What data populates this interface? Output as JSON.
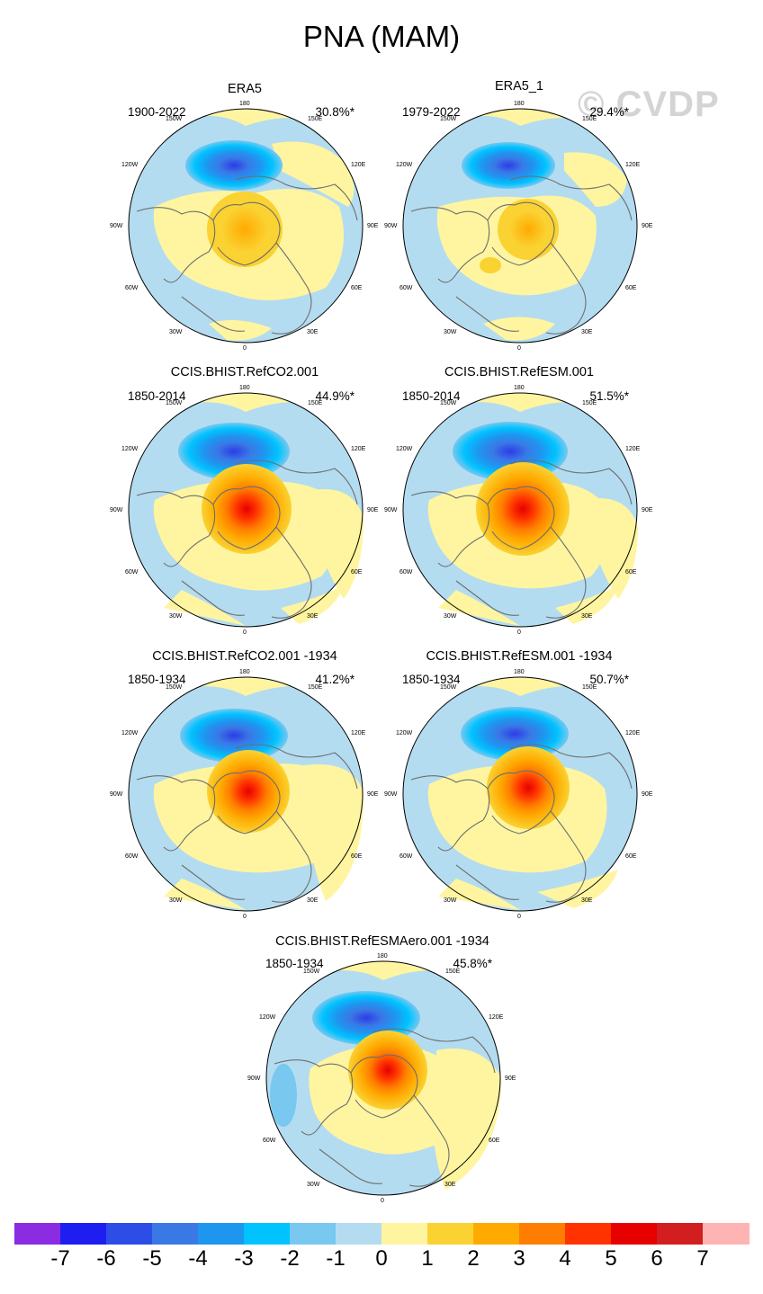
{
  "figure_title": "PNA (MAM)",
  "watermark": "© CVDP",
  "panels": [
    {
      "title": "ERA5",
      "years": "1900-2022",
      "pct": "30.8%*"
    },
    {
      "title": "ERA5_1",
      "years": "1979-2022",
      "pct": "29.4%*"
    },
    {
      "title": "CCIS.BHIST.RefCO2.001",
      "years": "1850-2014",
      "pct": "44.9%*"
    },
    {
      "title": "CCIS.BHIST.RefESM.001",
      "years": "1850-2014",
      "pct": "51.5%*"
    },
    {
      "title": "CCIS.BHIST.RefCO2.001 -1934",
      "years": "1850-1934",
      "pct": "41.2%*"
    },
    {
      "title": "CCIS.BHIST.RefESM.001 -1934",
      "years": "1850-1934",
      "pct": "50.7%*"
    },
    {
      "title": "CCIS.BHIST.RefESMAero.001 -1934",
      "years": "1850-1934",
      "pct": "45.8%*"
    }
  ],
  "lon_labels": {
    "l180": "180",
    "l150w": "150W",
    "l150e": "150E",
    "l120w": "120W",
    "l120e": "120E",
    "l90w": "90W",
    "l90e": "90E",
    "l60w": "60W",
    "l60e": "60E",
    "l30w": "30W",
    "l30e": "30E",
    "l0": "0"
  },
  "colorbar": {
    "colors": [
      "#8b2be2",
      "#1e1ef0",
      "#2d4ee6",
      "#3a78e6",
      "#1e96f0",
      "#00c3ff",
      "#78c8f0",
      "#b4dcf0",
      "#fff5a0",
      "#fad232",
      "#ffaa00",
      "#ff7d00",
      "#ff3200",
      "#e60000",
      "#d21e1e",
      "#ffb4b4"
    ],
    "tick_labels": [
      "-7",
      "-6",
      "-5",
      "-4",
      "-3",
      "-2",
      "-1",
      "0",
      "1",
      "2",
      "3",
      "4",
      "5",
      "6",
      "7"
    ]
  }
}
